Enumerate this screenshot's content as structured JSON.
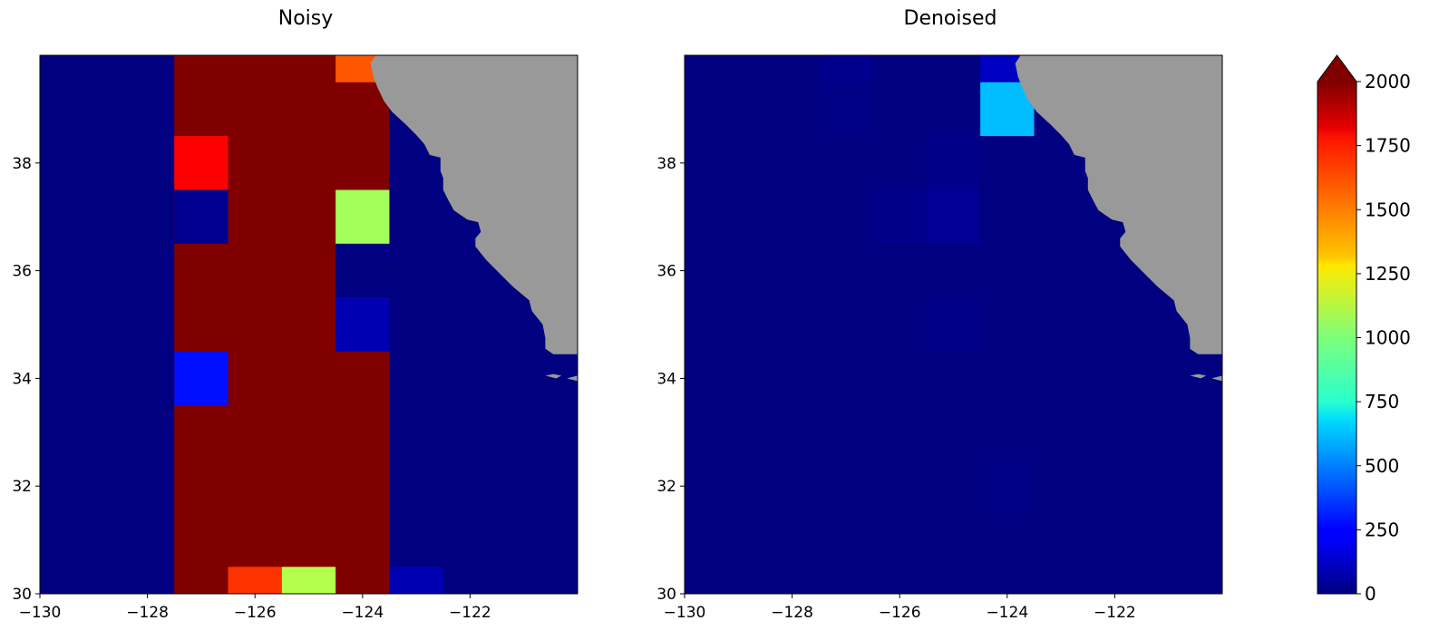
{
  "colors": {
    "land": "#999999",
    "background": "#000080",
    "axis": "#000000"
  },
  "colormap": {
    "name": "jet",
    "vmin": 0,
    "vmax": 2000,
    "extend": "max",
    "ticks": [
      0,
      250,
      500,
      750,
      1000,
      1250,
      1500,
      1750,
      2000
    ],
    "tick_labels": [
      "0",
      "250",
      "500",
      "750",
      "1000",
      "1250",
      "1500",
      "1750",
      "2000"
    ]
  },
  "chart_data": [
    {
      "type": "heatmap",
      "title": "Noisy",
      "xlim": [
        -130,
        -120
      ],
      "ylim": [
        30,
        40
      ],
      "xticks": [
        -130,
        -128,
        -126,
        -124,
        -122
      ],
      "xtick_labels": [
        "−130",
        "−128",
        "−126",
        "−124",
        "−122"
      ],
      "yticks": [
        30,
        32,
        34,
        36,
        38
      ],
      "ytick_labels": [
        "30",
        "32",
        "34",
        "36",
        "38"
      ],
      "grid": false,
      "background_value": 0,
      "cells": [
        {
          "lon": [
            -127.5,
            -123.5
          ],
          "lat": [
            30,
            40
          ],
          "value": 2000
        },
        {
          "lon": [
            -127.5,
            -126.5
          ],
          "lat": [
            37.5,
            38.5
          ],
          "value": 1750
        },
        {
          "lon": [
            -127.5,
            -126.5
          ],
          "lat": [
            36.5,
            37.5
          ],
          "value": 30
        },
        {
          "lon": [
            -127.5,
            -126.5
          ],
          "lat": [
            33.5,
            34.5
          ],
          "value": 280
        },
        {
          "lon": [
            -124.5,
            -123.5
          ],
          "lat": [
            39.5,
            40
          ],
          "value": 1580
        },
        {
          "lon": [
            -124.5,
            -123.5
          ],
          "lat": [
            36.5,
            37.5
          ],
          "value": 1070
        },
        {
          "lon": [
            -124.5,
            -123.5
          ],
          "lat": [
            35.5,
            36.5
          ],
          "value": 0
        },
        {
          "lon": [
            -124.5,
            -123.5
          ],
          "lat": [
            34.5,
            35.5
          ],
          "value": 100
        },
        {
          "lon": [
            -126.5,
            -125.5
          ],
          "lat": [
            30,
            30.5
          ],
          "value": 1650
        },
        {
          "lon": [
            -125.5,
            -124.5
          ],
          "lat": [
            30,
            30.5
          ],
          "value": 1100
        },
        {
          "lon": [
            -123.5,
            -122.5
          ],
          "lat": [
            30,
            30.5
          ],
          "value": 100
        }
      ]
    },
    {
      "type": "heatmap",
      "title": "Denoised",
      "xlim": [
        -130,
        -120
      ],
      "ylim": [
        30,
        40
      ],
      "xticks": [
        -130,
        -128,
        -126,
        -124,
        -122
      ],
      "xtick_labels": [
        "−130",
        "−128",
        "−126",
        "−124",
        "−122"
      ],
      "yticks": [
        30,
        32,
        34,
        36,
        38
      ],
      "ytick_labels": [
        "30",
        "32",
        "34",
        "36",
        "38"
      ],
      "grid": false,
      "background_value": 0,
      "cells": [
        {
          "lon": [
            -127.5,
            -126.5
          ],
          "lat": [
            39.5,
            40
          ],
          "value": 25
        },
        {
          "lon": [
            -127.5,
            -126.5
          ],
          "lat": [
            38.5,
            39.5
          ],
          "value": 8
        },
        {
          "lon": [
            -126.5,
            -125.5
          ],
          "lat": [
            36.5,
            37.5
          ],
          "value": 22
        },
        {
          "lon": [
            -125.5,
            -124.5
          ],
          "lat": [
            37.5,
            38.5
          ],
          "value": 20
        },
        {
          "lon": [
            -125.5,
            -124.5
          ],
          "lat": [
            36.5,
            37.5
          ],
          "value": 45
        },
        {
          "lon": [
            -125.5,
            -124.5
          ],
          "lat": [
            34.5,
            35.5
          ],
          "value": 22
        },
        {
          "lon": [
            -124.5,
            -123.5
          ],
          "lat": [
            39.5,
            40
          ],
          "value": 130
        },
        {
          "lon": [
            -124.5,
            -123.5
          ],
          "lat": [
            38.5,
            39.5
          ],
          "value": 620
        },
        {
          "lon": [
            -124.5,
            -123.5
          ],
          "lat": [
            31.5,
            32.5
          ],
          "value": 10
        }
      ]
    }
  ]
}
